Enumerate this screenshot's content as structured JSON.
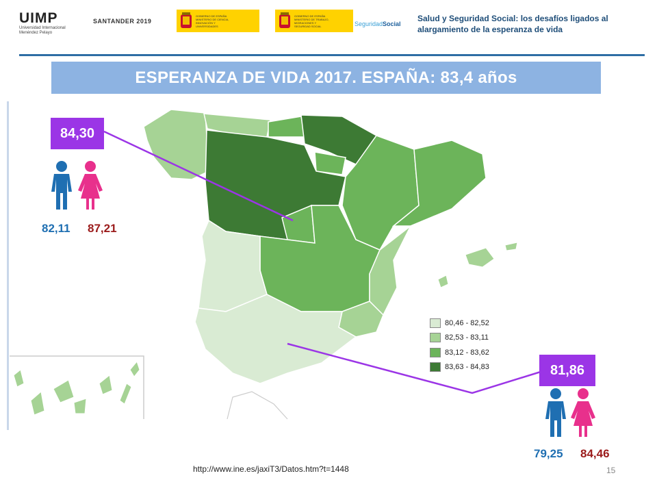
{
  "header": {
    "uimp_name": "UIMP",
    "uimp_sub_1": "Universidad Internacional",
    "uimp_sub_2": "Menéndez Pelayo",
    "event": "SANTANDER 2019",
    "gov1_text": "GOBIERNO DE ESPAÑA   MINISTERIO DE CIENCIA, INNOVACIÓN Y UNIVERSIDADES",
    "gov2_text": "GOBIERNO DE ESPAÑA   MINISTERIO DE TRABAJO, MIGRACIONES Y SEGURIDAD SOCIAL",
    "ss_light": "Seguridad",
    "ss_bold": "Social",
    "course_title_1": "Salud y Seguridad Social: los desafíos ligados al",
    "course_title_2": "alargamiento de la esperanza de vida"
  },
  "title": "ESPERANZA DE VIDA 2017. ESPAÑA: 83,4 años",
  "callouts": [
    {
      "value": "84,30",
      "male": "82,11",
      "female": "87,21"
    },
    {
      "value": "81,86",
      "male": "79,25",
      "female": "84,46"
    }
  ],
  "legend": [
    {
      "label": "80,46 - 82,52",
      "color": "#d9ebd3"
    },
    {
      "label": "82,53 - 83,11",
      "color": "#a6d395"
    },
    {
      "label": "83,12 - 83,62",
      "color": "#6cb45a"
    },
    {
      "label": "83,63 - 84,83",
      "color": "#3d7a34"
    }
  ],
  "colors": {
    "callout": "#9b35e6",
    "male": "#1f6fb2",
    "female": "#e8308c",
    "title_band": "#8db3e2"
  },
  "source": "http://www.ine.es/jaxiT3/Datos.htm?t=1448",
  "page_number": "15"
}
